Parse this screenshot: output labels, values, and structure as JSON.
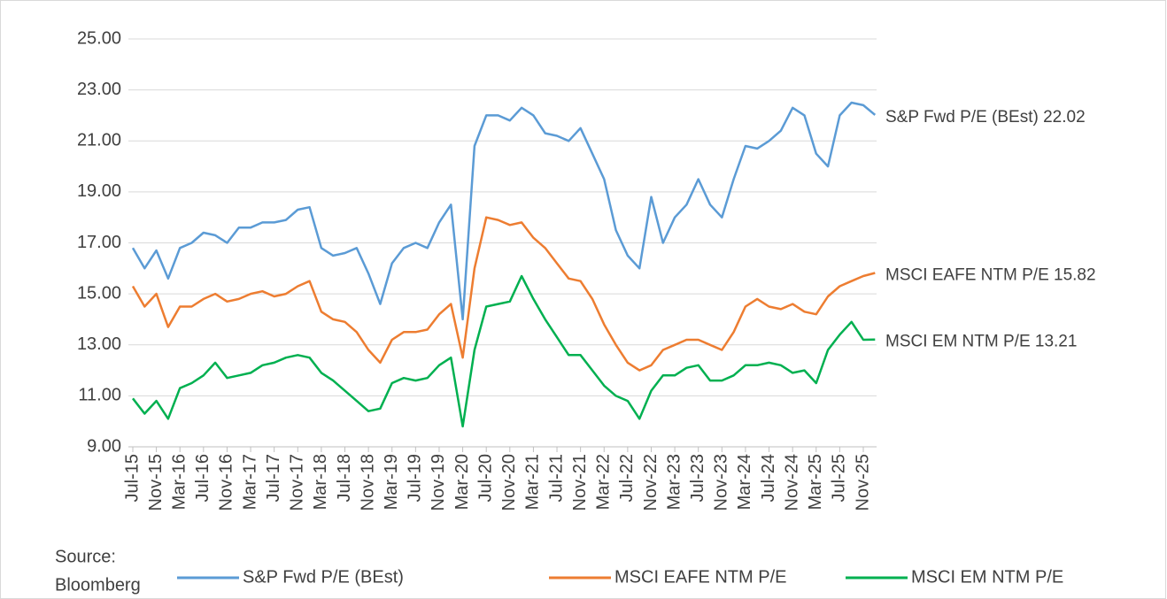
{
  "chart_data": {
    "type": "line",
    "categories": [
      "Jul-15",
      null,
      "Nov-15",
      null,
      "Mar-16",
      null,
      "Jul-16",
      null,
      "Nov-16",
      null,
      "Mar-17",
      null,
      "Jul-17",
      null,
      "Nov-17",
      null,
      "Mar-18",
      null,
      "Jul-18",
      null,
      "Nov-18",
      null,
      "Mar-19",
      null,
      "Jul-19",
      null,
      "Nov-19",
      null,
      "Mar-20",
      null,
      "Jul-20",
      null,
      "Nov-20",
      null,
      "Mar-21",
      null,
      "Jul-21",
      null,
      "Nov-21",
      null,
      "Mar-22",
      null,
      "Jul-22",
      null,
      "Nov-22",
      null,
      "Mar-23",
      null,
      "Jul-23",
      null,
      "Nov-23",
      null,
      "Mar-24",
      null,
      "Jul-24",
      null,
      "Nov-24",
      null,
      "Mar-25",
      null,
      "Jul-25",
      null,
      "Nov-25",
      null
    ],
    "series": [
      {
        "name": "S&P Fwd P/E (BEst)",
        "color": "#5b9bd5",
        "values": [
          16.8,
          16.0,
          16.7,
          15.6,
          16.8,
          17.0,
          17.4,
          17.3,
          17.0,
          17.6,
          17.6,
          17.8,
          17.8,
          17.9,
          18.3,
          18.4,
          16.8,
          16.5,
          16.6,
          16.8,
          15.8,
          14.6,
          16.2,
          16.8,
          17.0,
          16.8,
          17.8,
          18.5,
          14.0,
          20.8,
          22.0,
          22.0,
          21.8,
          22.3,
          22.0,
          21.3,
          21.2,
          21.0,
          21.5,
          20.5,
          19.5,
          17.5,
          16.5,
          16.0,
          18.8,
          17.0,
          18.0,
          18.5,
          19.5,
          18.5,
          18.0,
          19.5,
          20.8,
          20.7,
          21.0,
          21.4,
          22.3,
          22.0,
          20.5,
          20.0,
          22.0,
          22.5,
          22.4,
          22.02
        ]
      },
      {
        "name": "MSCI EAFE NTM P/E",
        "color": "#ed7d31",
        "values": [
          15.3,
          14.5,
          15.0,
          13.7,
          14.5,
          14.5,
          14.8,
          15.0,
          14.7,
          14.8,
          15.0,
          15.1,
          14.9,
          15.0,
          15.3,
          15.5,
          14.3,
          14.0,
          13.9,
          13.5,
          12.8,
          12.3,
          13.2,
          13.5,
          13.5,
          13.6,
          14.2,
          14.6,
          12.5,
          16.0,
          18.0,
          17.9,
          17.7,
          17.8,
          17.2,
          16.8,
          16.2,
          15.6,
          15.5,
          14.8,
          13.8,
          13.0,
          12.3,
          12.0,
          12.2,
          12.8,
          13.0,
          13.2,
          13.2,
          13.0,
          12.8,
          13.5,
          14.5,
          14.8,
          14.5,
          14.4,
          14.6,
          14.3,
          14.2,
          14.9,
          15.3,
          15.5,
          15.7,
          15.82
        ]
      },
      {
        "name": "MSCI EM NTM P/E",
        "color": "#00b050",
        "values": [
          10.9,
          10.3,
          10.8,
          10.1,
          11.3,
          11.5,
          11.8,
          12.3,
          11.7,
          11.8,
          11.9,
          12.2,
          12.3,
          12.5,
          12.6,
          12.5,
          11.9,
          11.6,
          11.2,
          10.8,
          10.4,
          10.5,
          11.5,
          11.7,
          11.6,
          11.7,
          12.2,
          12.5,
          9.8,
          12.8,
          14.5,
          14.6,
          14.7,
          15.7,
          14.8,
          14.0,
          13.3,
          12.6,
          12.6,
          12.0,
          11.4,
          11.0,
          10.8,
          10.1,
          11.2,
          11.8,
          11.8,
          12.1,
          12.2,
          11.6,
          11.6,
          11.8,
          12.2,
          12.2,
          12.3,
          12.2,
          11.9,
          12.0,
          11.5,
          12.8,
          13.4,
          13.9,
          13.2,
          13.21
        ]
      }
    ],
    "annotations": [
      {
        "text": "S&P Fwd P/E (BEst) 22.02",
        "color": "#2e75b6"
      },
      {
        "text": "MSCI EAFE NTM P/E 15.82",
        "color": "#ed7d31"
      },
      {
        "text": "MSCI EM NTM P/E 13.21",
        "color": "#00b050"
      }
    ],
    "ylim": [
      9,
      25
    ],
    "yticks": [
      {
        "value": 9,
        "label": "9.00"
      },
      {
        "value": 11,
        "label": "11.00"
      },
      {
        "value": 13,
        "label": "13.00"
      },
      {
        "value": 15,
        "label": "15.00"
      },
      {
        "value": 17,
        "label": "17.00"
      },
      {
        "value": 19,
        "label": "19.00"
      },
      {
        "value": 21,
        "label": "21.00"
      },
      {
        "value": 23,
        "label": "23.00"
      },
      {
        "value": 25,
        "label": "25.00"
      }
    ],
    "grid": true,
    "legend": "bottom",
    "source": [
      "Source:",
      "Bloomberg"
    ]
  }
}
